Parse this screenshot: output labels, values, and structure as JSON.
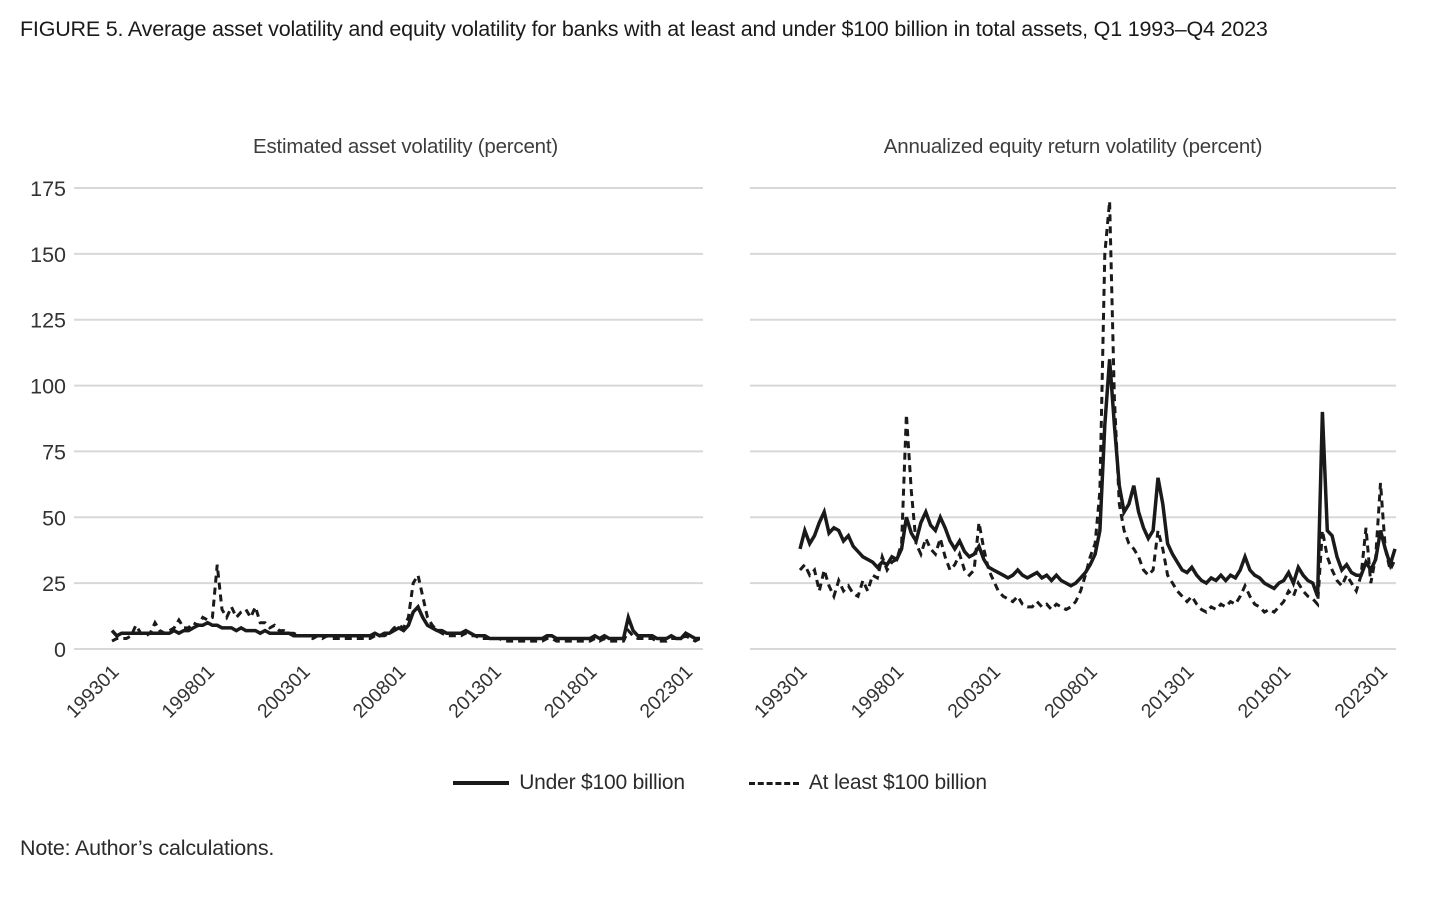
{
  "figure": {
    "title": "FIGURE 5. Average asset volatility and equity volatility for banks with at least and under $100 billion in total assets, Q1 1993–Q4 2023",
    "note": "Note: Author’s calculations."
  },
  "legend": {
    "solid_label": "Under $100 billion",
    "dashed_label": "At least $100 billion"
  },
  "colors": {
    "line": "#1a1a1a",
    "grid": "#d8d8d8",
    "axis_text": "#333333"
  },
  "chart_data": [
    {
      "type": "line",
      "title": "Estimated asset volatility (percent)",
      "x_start": "1993Q1",
      "x_end": "2023Q4",
      "frequency": "quarterly",
      "ylim": [
        0,
        175
      ],
      "y_ticks": [
        0,
        25,
        50,
        75,
        100,
        125,
        150,
        175
      ],
      "grid": "horizontal",
      "legend_position": "bottom-shared",
      "x_tick_labels": [
        "199301",
        "199801",
        "200301",
        "200801",
        "201301",
        "201801",
        "202301"
      ],
      "x_tick_quarter_index": [
        0,
        20,
        40,
        60,
        80,
        100,
        120
      ],
      "series": [
        {
          "name": "Under $100 billion",
          "style": "solid",
          "values": [
            7,
            5,
            6,
            6,
            6,
            6,
            6,
            6,
            6,
            6,
            6,
            6,
            6,
            7,
            6,
            7,
            7,
            8,
            9,
            9,
            10,
            9,
            9,
            8,
            8,
            8,
            7,
            8,
            7,
            7,
            7,
            6,
            7,
            6,
            6,
            6,
            6,
            6,
            5,
            5,
            5,
            5,
            5,
            5,
            5,
            5,
            5,
            5,
            5,
            5,
            5,
            5,
            5,
            5,
            5,
            6,
            5,
            6,
            6,
            7,
            8,
            7,
            9,
            14,
            16,
            12,
            9,
            8,
            7,
            7,
            6,
            6,
            6,
            6,
            7,
            6,
            5,
            5,
            5,
            4,
            4,
            4,
            4,
            4,
            4,
            4,
            4,
            4,
            4,
            4,
            4,
            5,
            5,
            4,
            4,
            4,
            4,
            4,
            4,
            4,
            4,
            5,
            4,
            5,
            4,
            4,
            4,
            4,
            12,
            7,
            5,
            5,
            5,
            5,
            4,
            4,
            4,
            5,
            4,
            4,
            6,
            5,
            4,
            4
          ]
        },
        {
          "name": "At least $100 billion",
          "style": "dashed",
          "values": [
            3,
            4,
            4,
            4,
            5,
            9,
            6,
            5,
            6,
            10,
            7,
            6,
            7,
            8,
            11,
            8,
            8,
            10,
            9,
            12,
            11,
            12,
            32,
            15,
            12,
            16,
            12,
            14,
            15,
            12,
            16,
            10,
            10,
            8,
            9,
            7,
            7,
            6,
            6,
            5,
            5,
            5,
            4,
            5,
            4,
            5,
            4,
            4,
            4,
            4,
            4,
            4,
            4,
            4,
            4,
            5,
            5,
            5,
            6,
            8,
            9,
            8,
            12,
            25,
            28,
            20,
            12,
            9,
            7,
            6,
            5,
            5,
            5,
            5,
            6,
            5,
            5,
            4,
            4,
            4,
            4,
            4,
            3,
            3,
            3,
            3,
            3,
            3,
            3,
            3,
            3,
            4,
            4,
            3,
            3,
            3,
            3,
            3,
            3,
            3,
            3,
            4,
            3,
            4,
            3,
            3,
            3,
            3,
            7,
            5,
            4,
            4,
            4,
            4,
            3,
            3,
            3,
            4,
            4,
            4,
            5,
            4,
            3,
            4
          ]
        }
      ]
    },
    {
      "type": "line",
      "title": "Annualized equity return volatility (percent)",
      "x_start": "1993Q1",
      "x_end": "2023Q4",
      "frequency": "quarterly",
      "ylim": [
        0,
        175
      ],
      "y_ticks": [
        0,
        25,
        50,
        75,
        100,
        125,
        150,
        175
      ],
      "grid": "horizontal",
      "legend_position": "bottom-shared",
      "x_tick_labels": [
        "199301",
        "199801",
        "200301",
        "200801",
        "201301",
        "201801",
        "202301"
      ],
      "x_tick_quarter_index": [
        0,
        20,
        40,
        60,
        80,
        100,
        120
      ],
      "series": [
        {
          "name": "Under $100 billion",
          "style": "solid",
          "values": [
            38,
            45,
            40,
            43,
            48,
            52,
            44,
            46,
            45,
            41,
            43,
            39,
            37,
            35,
            34,
            33,
            31,
            33,
            32,
            35,
            34,
            38,
            50,
            44,
            41,
            48,
            52,
            47,
            45,
            50,
            46,
            41,
            38,
            41,
            37,
            35,
            36,
            39,
            34,
            31,
            30,
            29,
            28,
            27,
            28,
            30,
            28,
            27,
            28,
            29,
            27,
            28,
            26,
            28,
            26,
            25,
            24,
            25,
            27,
            29,
            32,
            36,
            45,
            85,
            110,
            85,
            62,
            52,
            55,
            62,
            52,
            46,
            42,
            45,
            65,
            55,
            40,
            36,
            33,
            30,
            29,
            31,
            28,
            26,
            25,
            27,
            26,
            28,
            26,
            28,
            27,
            30,
            35,
            30,
            28,
            27,
            25,
            24,
            23,
            25,
            26,
            29,
            25,
            31,
            28,
            26,
            25,
            20,
            90,
            45,
            43,
            35,
            30,
            32,
            29,
            28,
            28,
            33,
            30,
            34,
            45,
            38,
            32,
            38
          ]
        },
        {
          "name": "At least $100 billion",
          "style": "dashed",
          "values": [
            30,
            32,
            28,
            30,
            22,
            30,
            24,
            20,
            26,
            22,
            24,
            21,
            20,
            26,
            22,
            28,
            27,
            35,
            30,
            33,
            34,
            40,
            89,
            60,
            40,
            36,
            42,
            38,
            36,
            42,
            35,
            30,
            32,
            36,
            30,
            28,
            30,
            48,
            38,
            30,
            26,
            22,
            20,
            19,
            18,
            20,
            17,
            16,
            16,
            18,
            16,
            17,
            15,
            17,
            16,
            15,
            16,
            18,
            22,
            28,
            35,
            40,
            60,
            150,
            170,
            95,
            55,
            45,
            40,
            38,
            35,
            30,
            28,
            30,
            45,
            38,
            28,
            25,
            22,
            20,
            18,
            20,
            17,
            15,
            14,
            16,
            15,
            17,
            16,
            18,
            17,
            20,
            24,
            20,
            17,
            16,
            14,
            15,
            14,
            16,
            18,
            22,
            20,
            25,
            22,
            20,
            19,
            17,
            45,
            35,
            30,
            26,
            24,
            28,
            25,
            22,
            28,
            46,
            25,
            35,
            63,
            38,
            30,
            34
          ]
        }
      ]
    }
  ]
}
